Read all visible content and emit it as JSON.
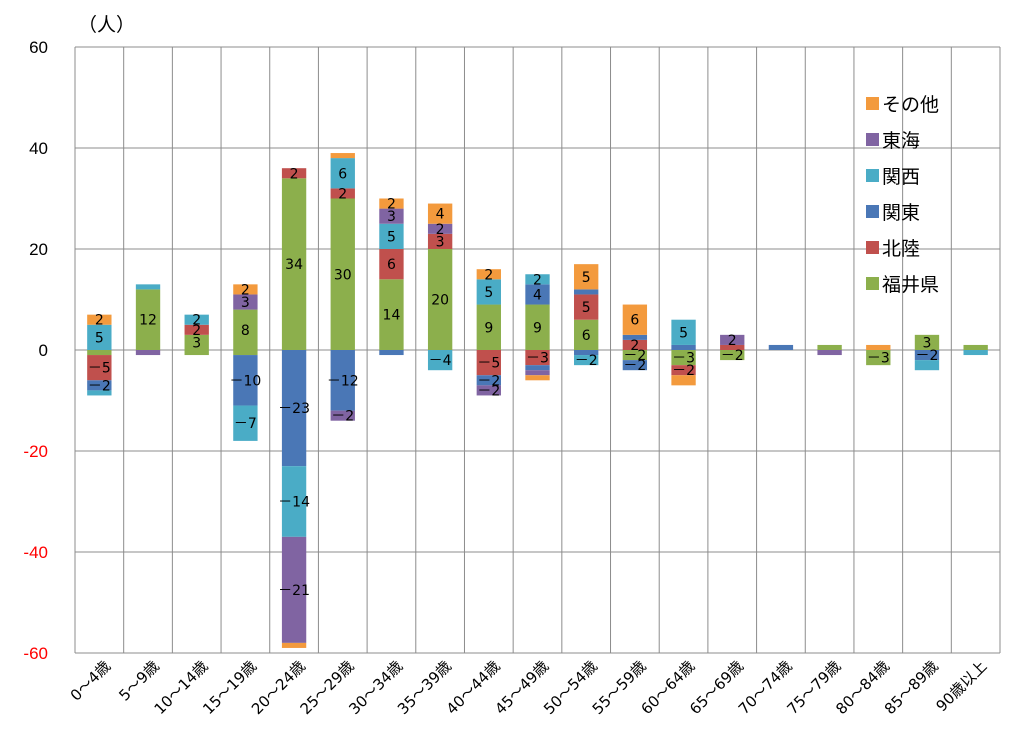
{
  "chart_data": {
    "type": "bar",
    "stacked": true,
    "title": "",
    "ylabel": "（人）",
    "xlabel": "",
    "ylim": [
      -60,
      60
    ],
    "yticks": [
      "60",
      "40",
      "20",
      "0",
      "-20",
      "-40",
      "-60"
    ],
    "grid": true,
    "legend_position": "top-right",
    "categories": [
      "0～4歳",
      "5～9歳",
      "10～14歳",
      "15～19歳",
      "20～24歳",
      "25～29歳",
      "30～34歳",
      "35～39歳",
      "40～44歳",
      "45～49歳",
      "50～54歳",
      "55～59歳",
      "60～64歳",
      "65～69歳",
      "70～74歳",
      "75～79歳",
      "80～84歳",
      "85～89歳",
      "90歳以上"
    ],
    "legend": [
      "その他",
      "東海",
      "関西",
      "関東",
      "北陸",
      "福井県"
    ],
    "series": [
      {
        "name": "福井県",
        "color": "#8CAF4C",
        "pos": [
          0,
          12,
          3,
          8,
          34,
          30,
          14,
          20,
          9,
          9,
          6,
          0,
          0,
          0,
          0,
          1,
          0,
          3,
          1
        ],
        "neg": [
          -1,
          0,
          -1,
          -1,
          0,
          0,
          0,
          0,
          0,
          0,
          0,
          -2,
          -3,
          -2,
          0,
          0,
          -3,
          0,
          0
        ]
      },
      {
        "name": "北陸",
        "color": "#C0504D",
        "pos": [
          0,
          0,
          2,
          0,
          2,
          2,
          6,
          3,
          0,
          0,
          5,
          2,
          0,
          1,
          0,
          0,
          0,
          0,
          0
        ],
        "neg": [
          -5,
          0,
          0,
          0,
          0,
          0,
          0,
          0,
          -5,
          -3,
          0,
          0,
          -2,
          0,
          0,
          0,
          0,
          0,
          0
        ]
      },
      {
        "name": "関東",
        "color": "#4A77B6",
        "pos": [
          0,
          0,
          0,
          0,
          0,
          0,
          0,
          0,
          0,
          4,
          1,
          1,
          1,
          0,
          1,
          0,
          0,
          0,
          0
        ],
        "neg": [
          -2,
          0,
          0,
          -10,
          -23,
          -12,
          -1,
          0,
          -2,
          -1,
          -1,
          -2,
          0,
          0,
          0,
          0,
          0,
          -2,
          0
        ]
      },
      {
        "name": "関西",
        "color": "#4AACC6",
        "pos": [
          5,
          1,
          2,
          0,
          0,
          6,
          5,
          0,
          5,
          2,
          0,
          0,
          5,
          0,
          0,
          0,
          0,
          0,
          0
        ],
        "neg": [
          -1,
          0,
          0,
          -7,
          -14,
          0,
          0,
          -4,
          0,
          0,
          -2,
          0,
          0,
          0,
          0,
          0,
          0,
          -2,
          -1
        ]
      },
      {
        "name": "東海",
        "color": "#8064A2",
        "pos": [
          0,
          0,
          0,
          3,
          0,
          0,
          3,
          2,
          0,
          0,
          0,
          0,
          0,
          2,
          0,
          0,
          0,
          0,
          0
        ],
        "neg": [
          0,
          -1,
          0,
          0,
          -21,
          -2,
          0,
          0,
          -2,
          -1,
          0,
          0,
          0,
          0,
          0,
          -1,
          0,
          0,
          0
        ]
      },
      {
        "name": "その他",
        "color": "#F39A3D",
        "pos": [
          2,
          0,
          0,
          2,
          0,
          1,
          2,
          4,
          2,
          0,
          5,
          6,
          0,
          0,
          0,
          0,
          1,
          0,
          0
        ],
        "neg": [
          0,
          0,
          0,
          0,
          -1,
          0,
          0,
          0,
          0,
          -1,
          0,
          0,
          -2,
          0,
          0,
          0,
          0,
          0,
          0
        ]
      }
    ],
    "data_labels": [
      [
        "0～4歳",
        "その他",
        "2"
      ],
      [
        "0～4歳",
        "関西",
        "5"
      ],
      [
        "0～4歳",
        "北陸",
        "-5"
      ],
      [
        "0～4歳",
        "関東",
        "-2"
      ],
      [
        "5～9歳",
        "福井県",
        "12"
      ],
      [
        "10～14歳",
        "関西",
        "2"
      ],
      [
        "10～14歳",
        "北陸",
        "2"
      ],
      [
        "10～14歳",
        "福井県",
        "3"
      ],
      [
        "15～19歳",
        "その他",
        "2"
      ],
      [
        "15～19歳",
        "東海",
        "3"
      ],
      [
        "15～19歳",
        "福井県",
        "8"
      ],
      [
        "15～19歳",
        "関東",
        "-10"
      ],
      [
        "15～19歳",
        "関西",
        "-7"
      ],
      [
        "20～24歳",
        "北陸",
        "2"
      ],
      [
        "20～24歳",
        "福井県",
        "34"
      ],
      [
        "20～24歳",
        "関東",
        "-23"
      ],
      [
        "20～24歳",
        "関西",
        "-14"
      ],
      [
        "20～24歳",
        "東海",
        "-21"
      ],
      [
        "25～29歳",
        "関西",
        "6"
      ],
      [
        "25～29歳",
        "北陸",
        "2"
      ],
      [
        "25～29歳",
        "福井県",
        "30"
      ],
      [
        "25～29歳",
        "関東",
        "-12"
      ],
      [
        "25～29歳",
        "東海",
        "-2"
      ],
      [
        "30～34歳",
        "その他",
        "2"
      ],
      [
        "30～34歳",
        "東海",
        "3"
      ],
      [
        "30～34歳",
        "関西",
        "5"
      ],
      [
        "30～34歳",
        "北陸",
        "6"
      ],
      [
        "30～34歳",
        "福井県",
        "14"
      ],
      [
        "35～39歳",
        "その他",
        "4"
      ],
      [
        "35～39歳",
        "東海",
        "2"
      ],
      [
        "35～39歳",
        "北陸",
        "3"
      ],
      [
        "35～39歳",
        "福井県",
        "20"
      ],
      [
        "35～39歳",
        "関西",
        "-4"
      ],
      [
        "40～44歳",
        "その他",
        "2"
      ],
      [
        "40～44歳",
        "関西",
        "5"
      ],
      [
        "40～44歳",
        "福井県",
        "9"
      ],
      [
        "40～44歳",
        "北陸",
        "-5"
      ],
      [
        "40～44歳",
        "関東",
        "-2"
      ],
      [
        "40～44歳",
        "東海",
        "-2"
      ],
      [
        "45～49歳",
        "関西",
        "2"
      ],
      [
        "45～49歳",
        "関東",
        "4"
      ],
      [
        "45～49歳",
        "福井県",
        "9"
      ],
      [
        "45～49歳",
        "北陸",
        "-3"
      ],
      [
        "50～54歳",
        "その他",
        "5"
      ],
      [
        "50～54歳",
        "北陸",
        "5"
      ],
      [
        "50～54歳",
        "福井県",
        "6"
      ],
      [
        "50～54歳",
        "関西",
        "-2"
      ],
      [
        "55～59歳",
        "その他",
        "6"
      ],
      [
        "55～59歳",
        "北陸",
        "2"
      ],
      [
        "55～59歳",
        "福井県",
        "-2"
      ],
      [
        "55～59歳",
        "関東",
        "-2"
      ],
      [
        "60～64歳",
        "関西",
        "5"
      ],
      [
        "60～64歳",
        "福井県",
        "-3"
      ],
      [
        "60～64歳",
        "北陸",
        "-2"
      ],
      [
        "65～69歳",
        "東海",
        "2"
      ],
      [
        "65～69歳",
        "福井県",
        "-2"
      ],
      [
        "80～84歳",
        "福井県",
        "-3"
      ],
      [
        "85～89歳",
        "福井県",
        "3"
      ],
      [
        "85～89歳",
        "関東",
        "-2"
      ]
    ]
  }
}
